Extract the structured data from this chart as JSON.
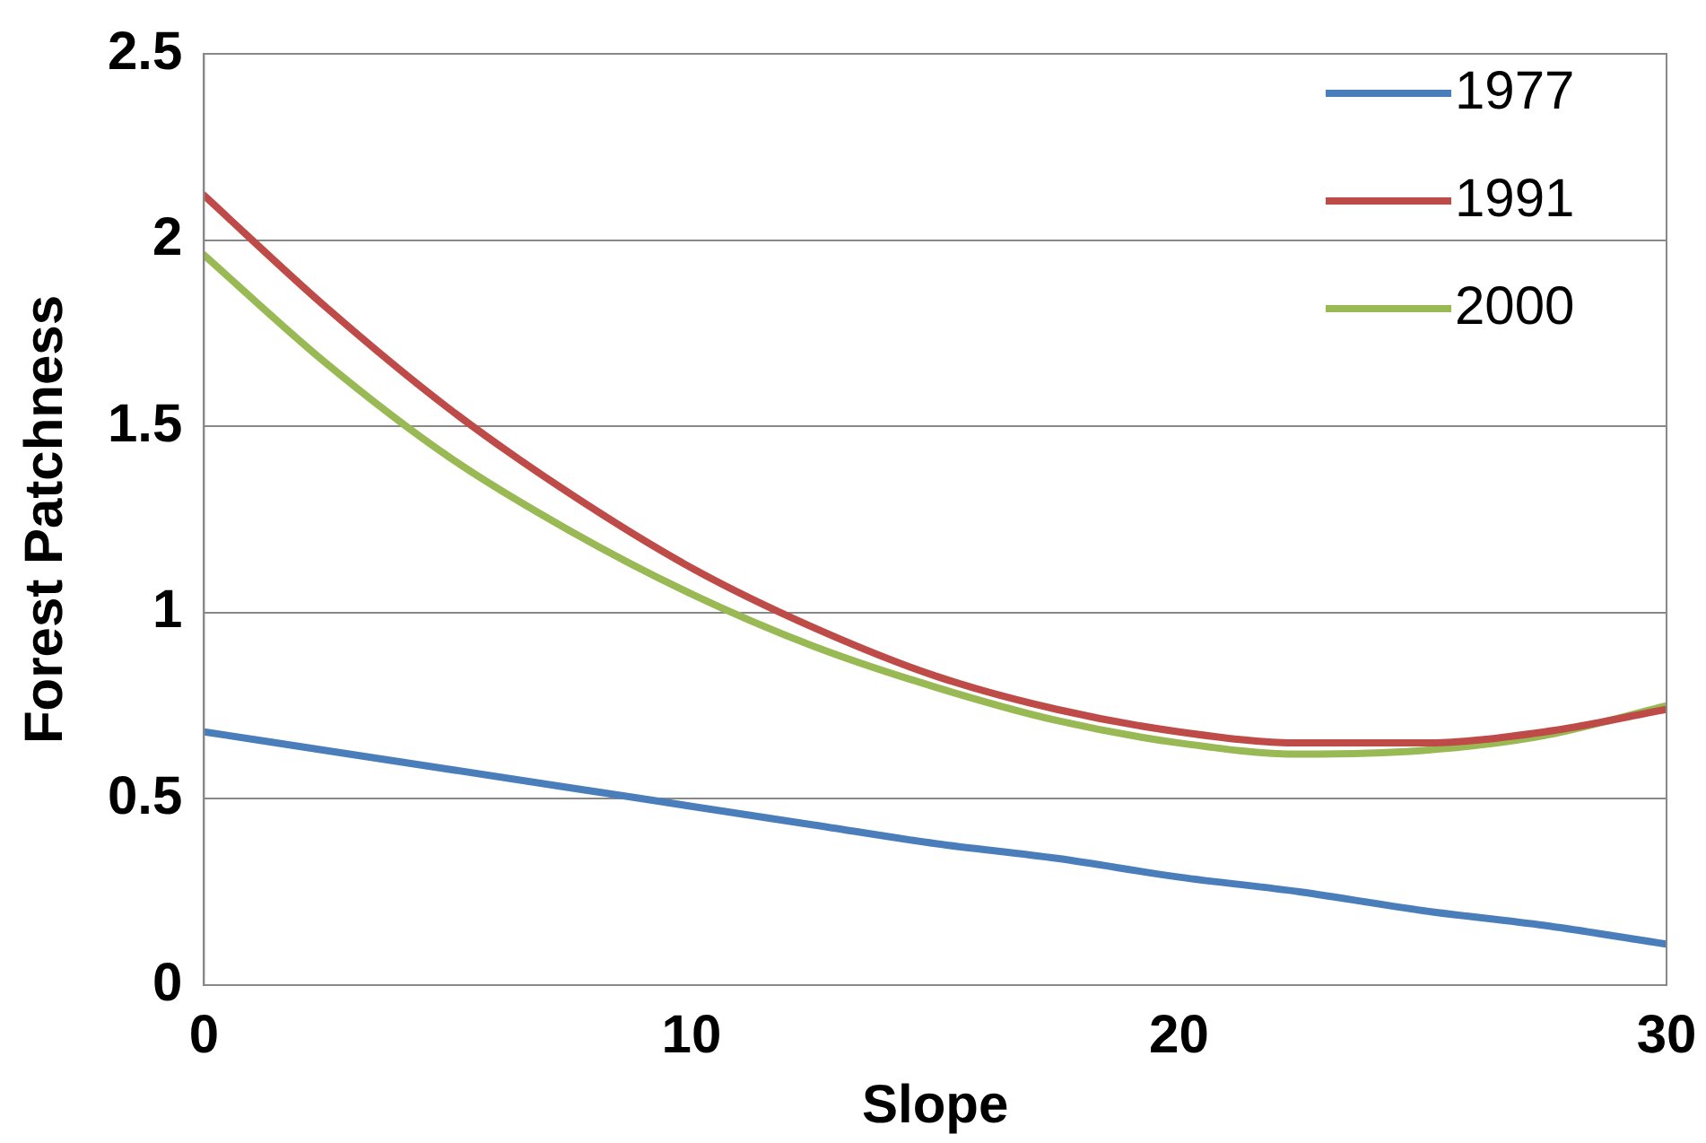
{
  "chart_data": {
    "type": "line",
    "xlabel": "Slope",
    "ylabel": "Forest Patchness",
    "x": [
      0,
      2.5,
      5,
      7.5,
      10,
      12.5,
      15,
      17.5,
      20,
      22.5,
      25,
      27.5,
      30
    ],
    "series": [
      {
        "name": "1977",
        "color": "#4a7ebb",
        "values": [
          0.68,
          0.63,
          0.58,
          0.53,
          0.48,
          0.43,
          0.38,
          0.34,
          0.29,
          0.25,
          0.2,
          0.16,
          0.11
        ]
      },
      {
        "name": "1991",
        "color": "#be4b48",
        "values": [
          2.12,
          1.82,
          1.55,
          1.32,
          1.12,
          0.96,
          0.83,
          0.74,
          0.68,
          0.65,
          0.65,
          0.68,
          0.74
        ]
      },
      {
        "name": "2000",
        "color": "#98b954",
        "values": [
          1.96,
          1.67,
          1.42,
          1.22,
          1.05,
          0.91,
          0.8,
          0.71,
          0.65,
          0.62,
          0.63,
          0.67,
          0.75
        ]
      }
    ],
    "xlim": [
      0,
      30
    ],
    "xticks": [
      0,
      10,
      20,
      30
    ],
    "ylim": [
      0,
      2.5
    ],
    "yticks": [
      0,
      0.5,
      1,
      1.5,
      2,
      2.5
    ],
    "grid": "y",
    "legend": "top right",
    "marker": "none",
    "line_style": "solid"
  }
}
